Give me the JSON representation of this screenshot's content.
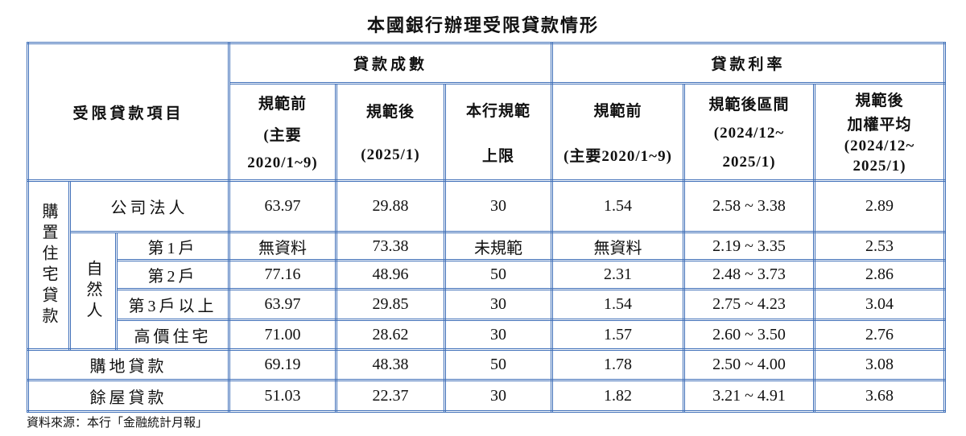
{
  "title": "本國銀行辦理受限貸款情形",
  "table": {
    "header": {
      "item": "受限貸款項目",
      "groups": [
        "貸款成數",
        "貸款利率"
      ],
      "columns": [
        [
          "規範前",
          "(主要",
          "2020/1~9)"
        ],
        [
          "規範後",
          "(2025/1)"
        ],
        [
          "本行規範",
          "上限"
        ],
        [
          "規範前",
          "(主要2020/1~9)"
        ],
        [
          "規範後區間",
          "(2024/12~",
          "2025/1)"
        ],
        [
          "規範後",
          "加權平均",
          "(2024/12~",
          "2025/1)"
        ]
      ]
    },
    "group_label": "購置住宅貸款",
    "subgroup_label": "自然人",
    "rows": [
      {
        "label": "公司法人",
        "cells": [
          "63.97",
          "29.88",
          "30",
          "1.54",
          "2.58 ~ 3.38",
          "2.89"
        ]
      },
      {
        "label": "第1戶",
        "cells": [
          "無資料",
          "73.38",
          "未規範",
          "無資料",
          "2.19 ~ 3.35",
          "2.53"
        ]
      },
      {
        "label": "第2戶",
        "cells": [
          "77.16",
          "48.96",
          "50",
          "2.31",
          "2.48 ~ 3.73",
          "2.86"
        ]
      },
      {
        "label": "第3戶以上",
        "cells": [
          "63.97",
          "29.85",
          "30",
          "1.54",
          "2.75 ~ 4.23",
          "3.04"
        ]
      },
      {
        "label": "高價住宅",
        "cells": [
          "71.00",
          "28.62",
          "30",
          "1.57",
          "2.60 ~ 3.50",
          "2.76"
        ]
      },
      {
        "label": "購地貸款",
        "cells": [
          "69.19",
          "48.38",
          "50",
          "1.78",
          "2.50 ~ 4.00",
          "3.08"
        ]
      },
      {
        "label": "餘屋貸款",
        "cells": [
          "51.03",
          "22.37",
          "30",
          "1.82",
          "3.21 ~ 4.91",
          "3.68"
        ]
      }
    ]
  },
  "source": "資料來源：本行「金融統計月報」"
}
